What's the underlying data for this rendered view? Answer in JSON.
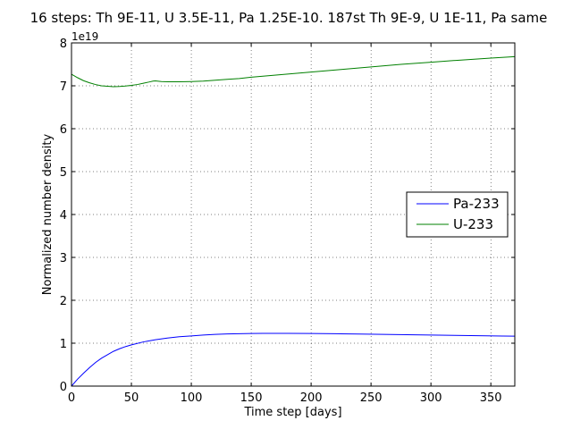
{
  "chart_data": {
    "type": "line",
    "title": "16 steps: Th 9E-11, U 3.5E-11, Pa 1.25E-10. 187st Th 9E-9, U 1E-11, Pa same",
    "xlabel": "Time step [days]",
    "ylabel": "Normalized number density",
    "y_multiplier_label": "1e19",
    "xlim": [
      0,
      370
    ],
    "ylim": [
      0,
      8
    ],
    "x_ticks": [
      0,
      50,
      100,
      150,
      200,
      250,
      300,
      350
    ],
    "y_ticks": [
      0,
      1,
      2,
      3,
      4,
      5,
      6,
      7,
      8
    ],
    "grid": true,
    "legend_position": "center-right",
    "series": [
      {
        "name": "Pa-233",
        "color": "#0000ff",
        "x": [
          0,
          5,
          10,
          15,
          20,
          25,
          30,
          35,
          40,
          45,
          50,
          60,
          70,
          80,
          90,
          100,
          110,
          120,
          130,
          140,
          150,
          160,
          170,
          180,
          200,
          220,
          240,
          260,
          280,
          300,
          320,
          340,
          360,
          370
        ],
        "y": [
          0.0,
          0.16,
          0.3,
          0.43,
          0.55,
          0.65,
          0.73,
          0.81,
          0.87,
          0.92,
          0.96,
          1.03,
          1.08,
          1.12,
          1.15,
          1.17,
          1.19,
          1.205,
          1.215,
          1.222,
          1.226,
          1.228,
          1.229,
          1.229,
          1.226,
          1.221,
          1.214,
          1.206,
          1.197,
          1.19,
          1.182,
          1.175,
          1.168,
          1.165
        ]
      },
      {
        "name": "U-233",
        "color": "#008000",
        "x": [
          0,
          5,
          10,
          15,
          20,
          25,
          30,
          35,
          40,
          45,
          50,
          55,
          60,
          65,
          68,
          70,
          75,
          80,
          90,
          100,
          110,
          120,
          130,
          140,
          150,
          175,
          200,
          225,
          250,
          275,
          300,
          325,
          350,
          370
        ],
        "y": [
          7.27,
          7.19,
          7.12,
          7.07,
          7.03,
          7.0,
          6.99,
          6.98,
          6.985,
          6.995,
          7.01,
          7.03,
          7.06,
          7.09,
          7.11,
          7.115,
          7.1,
          7.095,
          7.095,
          7.1,
          7.11,
          7.13,
          7.15,
          7.17,
          7.2,
          7.26,
          7.32,
          7.38,
          7.44,
          7.5,
          7.55,
          7.6,
          7.645,
          7.68
        ]
      }
    ]
  }
}
